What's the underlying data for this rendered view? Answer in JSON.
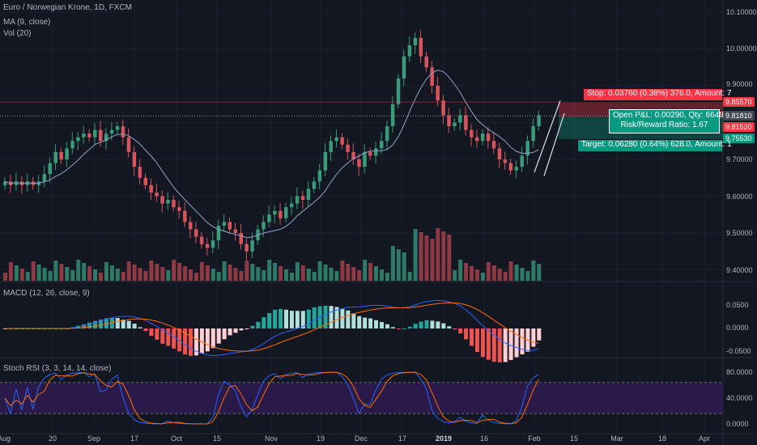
{
  "header": {
    "symbol_line": "Euro / Norwegian Krone, 1D, FXCM",
    "ma_line": "MA (9, close)",
    "vol_line": "Vol (20)"
  },
  "macd": {
    "title": "MACD (12, 26, close, 9)",
    "y_ticks": [
      "0.0500",
      "0.0000",
      "-0.0500"
    ]
  },
  "stoch": {
    "title": "Stoch RSI (3, 3, 14, 14, close)",
    "y_ticks": [
      "80.0000",
      "40.0000",
      "0.0000"
    ]
  },
  "price_axis": {
    "ticks": [
      "10.10000",
      "10.00000",
      "9.90000",
      "9.70000",
      "9.60000",
      "9.50000",
      "9.40000"
    ]
  },
  "price_tags": {
    "stop": "9.85570",
    "last": "9.81810",
    "entry": "9.81520",
    "target": "9.75530"
  },
  "position": {
    "stop_text": "Stop: 0.03760 (0.38%) 376.0, Amount: 7",
    "pnl_text": "Open P&L: 0.00290, Qty: 6648",
    "rr_text": "Risk/Reward Ratio: 1.67",
    "target_text": "Target: 0.06280 (0.64%) 628.0, Amount: 1"
  },
  "time_axis": [
    {
      "label": "Aug",
      "bold": false
    },
    {
      "label": "20",
      "bold": false
    },
    {
      "label": "Sep",
      "bold": false
    },
    {
      "label": "17",
      "bold": false
    },
    {
      "label": "Oct",
      "bold": false
    },
    {
      "label": "15",
      "bold": false
    },
    {
      "label": "Nov",
      "bold": false
    },
    {
      "label": "19",
      "bold": false
    },
    {
      "label": "Dec",
      "bold": false
    },
    {
      "label": "17",
      "bold": false
    },
    {
      "label": "2019",
      "bold": true
    },
    {
      "label": "16",
      "bold": false
    },
    {
      "label": "Feb",
      "bold": false
    },
    {
      "label": "15",
      "bold": false
    },
    {
      "label": "Mar",
      "bold": false
    },
    {
      "label": "18",
      "bold": false
    },
    {
      "label": "Apr",
      "bold": false
    }
  ],
  "chart_data": {
    "type": "candlestick",
    "price_close": [
      9.64,
      9.63,
      9.64,
      9.63,
      9.64,
      9.63,
      9.64,
      9.66,
      9.69,
      9.72,
      9.7,
      9.73,
      9.75,
      9.76,
      9.77,
      9.76,
      9.78,
      9.75,
      9.77,
      9.78,
      9.79,
      9.76,
      9.72,
      9.68,
      9.65,
      9.63,
      9.61,
      9.6,
      9.58,
      9.59,
      9.57,
      9.56,
      9.53,
      9.51,
      9.49,
      9.47,
      9.46,
      9.48,
      9.52,
      9.53,
      9.51,
      9.5,
      9.47,
      9.45,
      9.48,
      9.51,
      9.53,
      9.55,
      9.56,
      9.54,
      9.57,
      9.58,
      9.6,
      9.59,
      9.62,
      9.64,
      9.67,
      9.72,
      9.75,
      9.76,
      9.74,
      9.72,
      9.7,
      9.68,
      9.72,
      9.71,
      9.73,
      9.75,
      9.79,
      9.85,
      9.92,
      9.98,
      10.01,
      10.03,
      9.98,
      9.95,
      9.9,
      9.86,
      9.82,
      9.79,
      9.8,
      9.82,
      9.78,
      9.76,
      9.75,
      9.77,
      9.75,
      9.73,
      9.7,
      9.69,
      9.67,
      9.68,
      9.71,
      9.75,
      9.79,
      9.82
    ],
    "macd_range": [
      -0.05,
      0.07
    ],
    "stoch_range": [
      0,
      100
    ],
    "stoch_bands": [
      20,
      80
    ]
  }
}
